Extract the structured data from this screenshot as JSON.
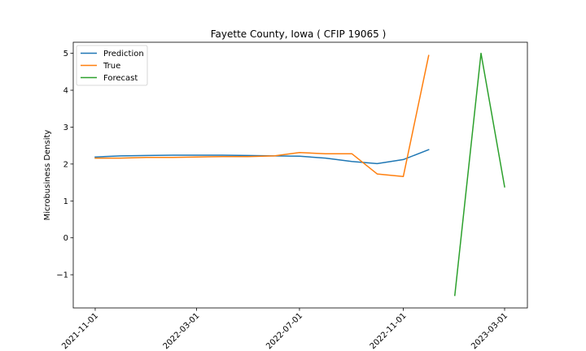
{
  "chart_data": {
    "type": "line",
    "title": "Fayette County, Iowa ( CFIP 19065 )",
    "xlabel": "",
    "ylabel": "Microbusiness Density",
    "ylim": [
      -1.9,
      5.3
    ],
    "xlim": [
      "2021-10-06",
      "2023-03-28"
    ],
    "x_ticks": [
      "2021-11-01",
      "2022-03-01",
      "2022-07-01",
      "2022-11-01",
      "2023-03-01"
    ],
    "y_ticks": [
      -1,
      0,
      1,
      2,
      3,
      4,
      5
    ],
    "grid": false,
    "legend_position": "upper left",
    "series": [
      {
        "name": "Prediction",
        "color": "#1f77b4",
        "x": [
          "2021-11-01",
          "2021-12-01",
          "2022-01-01",
          "2022-02-01",
          "2022-03-01",
          "2022-04-01",
          "2022-05-01",
          "2022-06-01",
          "2022-07-01",
          "2022-08-01",
          "2022-09-01",
          "2022-10-01",
          "2022-11-01",
          "2022-12-01"
        ],
        "y": [
          2.19,
          2.22,
          2.23,
          2.24,
          2.24,
          2.24,
          2.23,
          2.22,
          2.21,
          2.16,
          2.07,
          2.01,
          2.12,
          2.39
        ]
      },
      {
        "name": "True",
        "color": "#ff7f0e",
        "x": [
          "2021-11-01",
          "2021-12-01",
          "2022-01-01",
          "2022-02-01",
          "2022-03-01",
          "2022-04-01",
          "2022-05-01",
          "2022-06-01",
          "2022-07-01",
          "2022-08-01",
          "2022-09-01",
          "2022-10-01",
          "2022-11-01",
          "2022-12-01"
        ],
        "y": [
          2.16,
          2.16,
          2.18,
          2.18,
          2.19,
          2.2,
          2.2,
          2.22,
          2.31,
          2.28,
          2.28,
          1.73,
          1.66,
          4.94
        ]
      },
      {
        "name": "Forecast",
        "color": "#2ca02c",
        "x": [
          "2023-01-01",
          "2023-02-01",
          "2023-03-01"
        ],
        "y": [
          -1.56,
          5.0,
          1.38
        ]
      }
    ]
  }
}
